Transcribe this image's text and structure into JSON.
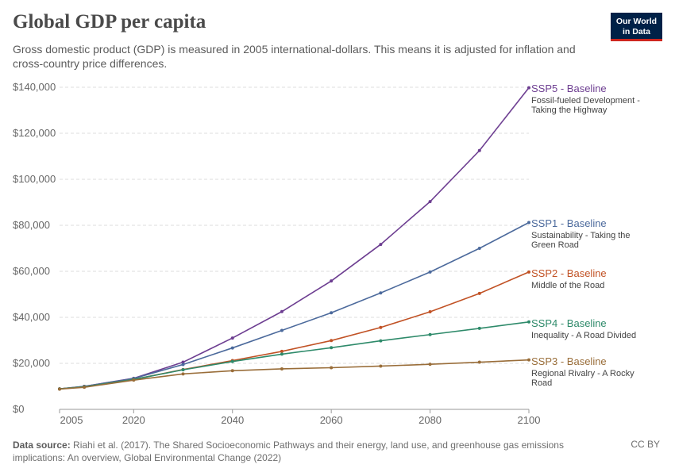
{
  "header": {
    "title": "Global GDP per capita",
    "subtitle": "Gross domestic product (GDP) is measured in 2005 international-dollars. This means it is adjusted for inflation and cross-country price differences."
  },
  "logo": {
    "line1": "Our World",
    "line2": "in Data",
    "bg_color": "#002147",
    "accent_color": "#ce261e"
  },
  "footer": {
    "source_label": "Data source:",
    "source_text": "Riahi et al. (2017). The Shared Socioeconomic Pathways and their energy, land use, and greenhouse gas emissions implications: An overview, Global Environmental Change (2022)",
    "license": "CC BY"
  },
  "chart_data": {
    "type": "line",
    "title": "Global GDP per capita",
    "xlabel": "",
    "ylabel": "",
    "xlim": [
      2005,
      2100
    ],
    "ylim": [
      0,
      140000
    ],
    "x_ticks": [
      2005,
      2020,
      2040,
      2060,
      2080,
      2100
    ],
    "y_ticks": [
      0,
      20000,
      40000,
      60000,
      80000,
      100000,
      120000,
      140000
    ],
    "y_tick_labels": [
      "$0",
      "$20,000",
      "$40,000",
      "$60,000",
      "$80,000",
      "$100,000",
      "$120,000",
      "$140,000"
    ],
    "grid": "horizontal-dashed",
    "legend": "right-end-labels",
    "x": [
      2005,
      2010,
      2020,
      2030,
      2040,
      2050,
      2060,
      2070,
      2080,
      2090,
      2100
    ],
    "series": [
      {
        "name": "SSP5 - Baseline",
        "description": "Fossil-fueled Development - Taking the Highway",
        "color": "#6d3e91",
        "values": [
          8900,
          10000,
          13500,
          20500,
          31000,
          42500,
          55800,
          71700,
          90300,
          112500,
          139800
        ]
      },
      {
        "name": "SSP1 - Baseline",
        "description": "Sustainability - Taking the Green Road",
        "color": "#4c6a9c",
        "values": [
          8900,
          10000,
          13400,
          19500,
          26700,
          34300,
          42000,
          50600,
          59700,
          70000,
          81200
        ]
      },
      {
        "name": "SSP2 - Baseline",
        "description": "Middle of the Road",
        "color": "#c15225",
        "values": [
          8900,
          9800,
          13000,
          17300,
          21200,
          25200,
          29900,
          35600,
          42400,
          50400,
          59700
        ]
      },
      {
        "name": "SSP4 - Baseline",
        "description": "Inequality - A Road Divided",
        "color": "#2e8a6a",
        "values": [
          8900,
          9800,
          13000,
          17200,
          20800,
          24000,
          26800,
          29800,
          32500,
          35200,
          38000
        ]
      },
      {
        "name": "SSP3 - Baseline",
        "description": "Regional Rivalry - A Rocky Road",
        "color": "#996d39",
        "values": [
          8800,
          9600,
          12700,
          15400,
          16800,
          17600,
          18100,
          18800,
          19600,
          20500,
          21500
        ]
      }
    ]
  }
}
